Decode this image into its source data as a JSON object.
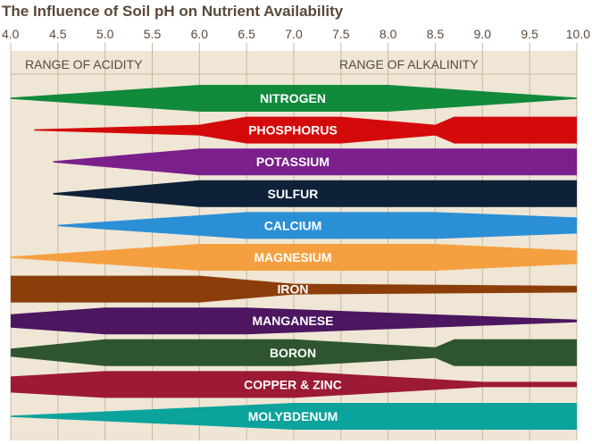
{
  "chart_data": {
    "type": "area",
    "title": "The Influence of Soil pH on Nutrient Availability",
    "x_ticks": [
      "4.0",
      "4.5",
      "5.0",
      "5.5",
      "6.0",
      "6.5",
      "7.0",
      "7.5",
      "8.0",
      "8.5",
      "9.0",
      "9.5",
      "10.0"
    ],
    "xlim": [
      4.0,
      10.0
    ],
    "grid": true,
    "range_labels": {
      "acidity": "RANGE OF ACIDITY",
      "alkalinity": "RANGE OF ALKALINITY"
    },
    "colors": {
      "background": "#efe6d5",
      "grid": "#c6b9a2",
      "text": "#5a4a3a"
    },
    "series": [
      {
        "name": "NITROGEN",
        "color": "#118a3c",
        "profile": [
          [
            4.0,
            0.05
          ],
          [
            6.0,
            1
          ],
          [
            8.0,
            1
          ],
          [
            10.0,
            0.05
          ]
        ]
      },
      {
        "name": "PHOSPHORUS",
        "color": "#d40a0a",
        "profile": [
          [
            4.25,
            0.05
          ],
          [
            6.0,
            0.4
          ],
          [
            6.5,
            1
          ],
          [
            7.5,
            1
          ],
          [
            8.5,
            0.4
          ],
          [
            8.7,
            1
          ],
          [
            10.0,
            1
          ]
        ]
      },
      {
        "name": "POTASSIUM",
        "color": "#7a1f8c",
        "profile": [
          [
            4.45,
            0.05
          ],
          [
            6.0,
            1
          ],
          [
            10.0,
            1
          ]
        ]
      },
      {
        "name": "SULFUR",
        "color": "#0f2138",
        "profile": [
          [
            4.45,
            0.05
          ],
          [
            6.0,
            1
          ],
          [
            10.0,
            1
          ]
        ]
      },
      {
        "name": "CALCIUM",
        "color": "#2b8fd6",
        "profile": [
          [
            4.5,
            0.05
          ],
          [
            6.5,
            1
          ],
          [
            8.5,
            1
          ],
          [
            10.0,
            0.6
          ]
        ]
      },
      {
        "name": "MAGNESIUM",
        "color": "#f5a040",
        "profile": [
          [
            4.0,
            0.05
          ],
          [
            6.0,
            1
          ],
          [
            8.5,
            1
          ],
          [
            10.0,
            0.5
          ]
        ]
      },
      {
        "name": "IRON",
        "color": "#8c3e0a",
        "profile": [
          [
            4.0,
            1
          ],
          [
            6.0,
            1
          ],
          [
            7.0,
            0.4
          ],
          [
            10.0,
            0.25
          ]
        ]
      },
      {
        "name": "MANGANESE",
        "color": "#4c1660",
        "profile": [
          [
            4.0,
            0.5
          ],
          [
            5.0,
            1
          ],
          [
            6.5,
            1
          ],
          [
            10.0,
            0.1
          ]
        ]
      },
      {
        "name": "BORON",
        "color": "#2e5530",
        "profile": [
          [
            4.0,
            0.3
          ],
          [
            5.0,
            1
          ],
          [
            7.0,
            1
          ],
          [
            8.5,
            0.4
          ],
          [
            8.7,
            1
          ],
          [
            10.0,
            1
          ]
        ]
      },
      {
        "name": "COPPER & ZINC",
        "color": "#9c1a34",
        "profile": [
          [
            4.0,
            0.6
          ],
          [
            5.0,
            1
          ],
          [
            7.0,
            1
          ],
          [
            9.0,
            0.2
          ],
          [
            10.0,
            0.2
          ]
        ]
      },
      {
        "name": "MOLYBDENUM",
        "color": "#0ca39c",
        "profile": [
          [
            4.0,
            0.05
          ],
          [
            7.0,
            1
          ],
          [
            10.0,
            1
          ]
        ]
      }
    ]
  }
}
